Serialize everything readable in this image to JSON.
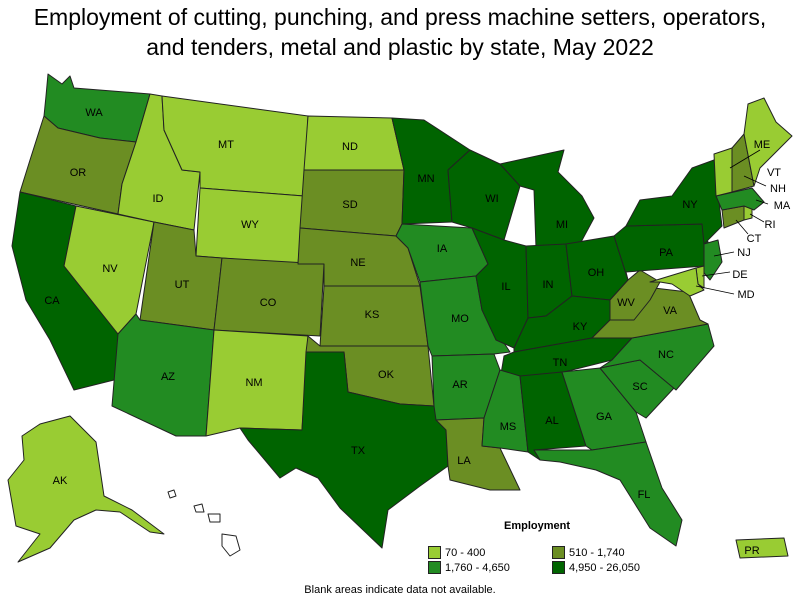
{
  "title_line1": "Employment of cutting, punching, and press machine setters, operators,",
  "title_line2": "and tenders, metal and plastic by state, May 2022",
  "legend": {
    "title": "Employment",
    "bins": [
      {
        "label": "70 - 400",
        "color": "#99cc33"
      },
      {
        "label": "510 - 1,740",
        "color": "#6b8e23"
      },
      {
        "label": "1,760 - 4,650",
        "color": "#228b22"
      },
      {
        "label": "4,950 - 26,050",
        "color": "#006400"
      }
    ]
  },
  "note": "Blank areas indicate data not available.",
  "states": {
    "WA": 2,
    "OR": 1,
    "CA": 3,
    "NV": 0,
    "ID": 0,
    "MT": 0,
    "WY": 0,
    "UT": 1,
    "AZ": 2,
    "CO": 1,
    "NM": 0,
    "ND": 0,
    "SD": 1,
    "NE": 1,
    "KS": 1,
    "OK": 1,
    "TX": 3,
    "MN": 3,
    "IA": 2,
    "MO": 2,
    "AR": 2,
    "LA": 1,
    "WI": 3,
    "IL": 3,
    "MI": 3,
    "IN": 3,
    "OH": 3,
    "KY": 3,
    "TN": 3,
    "MS": 2,
    "AL": 3,
    "GA": 2,
    "FL": 2,
    "SC": 2,
    "NC": 2,
    "VA": 1,
    "WV": 1,
    "PA": 3,
    "NY": 3,
    "ME": 0,
    "VT": 0,
    "NH": 1,
    "MA": 2,
    "RI": 0,
    "CT": 1,
    "NJ": 2,
    "DE": 0,
    "MD": 0,
    "AK": 0,
    "HI": -1,
    "PR": 0
  }
}
